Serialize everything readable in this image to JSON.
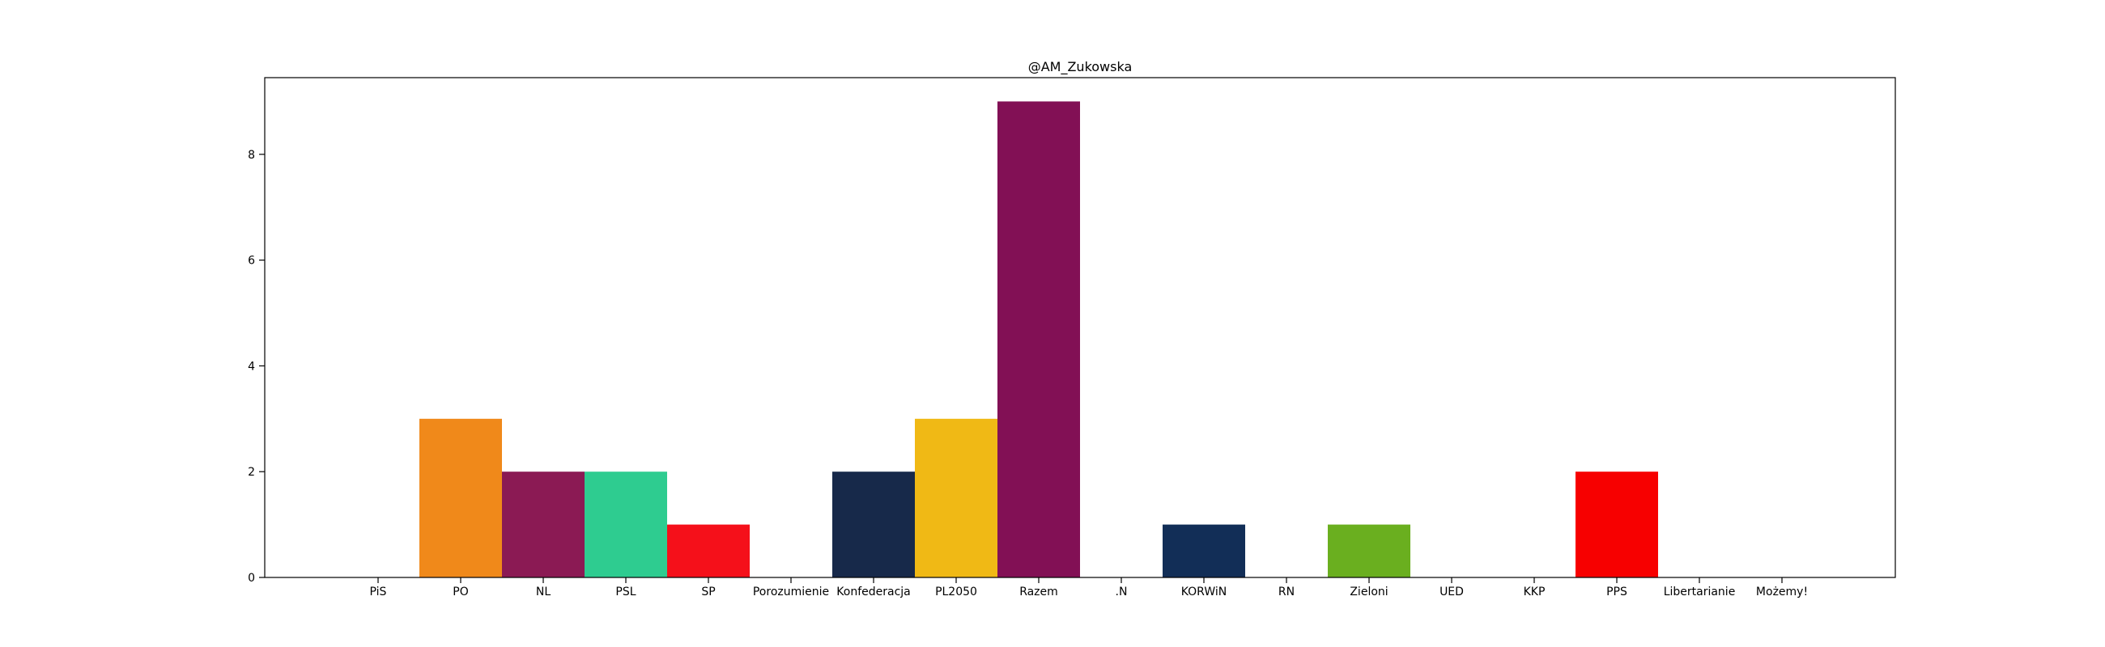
{
  "chart_data": {
    "type": "bar",
    "title": "@AM_Zukowska",
    "xlabel": "",
    "ylabel": "",
    "categories": [
      "PiS",
      "PO",
      "NL",
      "PSL",
      "SP",
      "Porozumienie",
      "Konfederacja",
      "PL2050",
      "Razem",
      ".N",
      "KORWiN",
      "RN",
      "Zieloni",
      "UED",
      "KKP",
      "PPS",
      "Libertarianie",
      "Możemy!"
    ],
    "values": [
      0,
      3,
      2,
      2,
      1,
      0,
      2,
      3,
      9,
      0,
      1,
      0,
      1,
      0,
      0,
      2,
      0,
      0
    ],
    "colors": [
      "#1f5fa8",
      "#f0891a",
      "#8b1a54",
      "#2ecc90",
      "#f5101a",
      "#3d76b8",
      "#17294a",
      "#f0b915",
      "#821055",
      "#e0e0e0",
      "#122e57",
      "#2a4f8a",
      "#6aaf1f",
      "#0b3d91",
      "#aa0000",
      "#f70000",
      "#ffcc00",
      "#6a1b9a"
    ],
    "ylim": [
      0,
      9.45
    ],
    "yticks": [
      0,
      2,
      4,
      6,
      8
    ],
    "grid": false,
    "legend": "none"
  }
}
